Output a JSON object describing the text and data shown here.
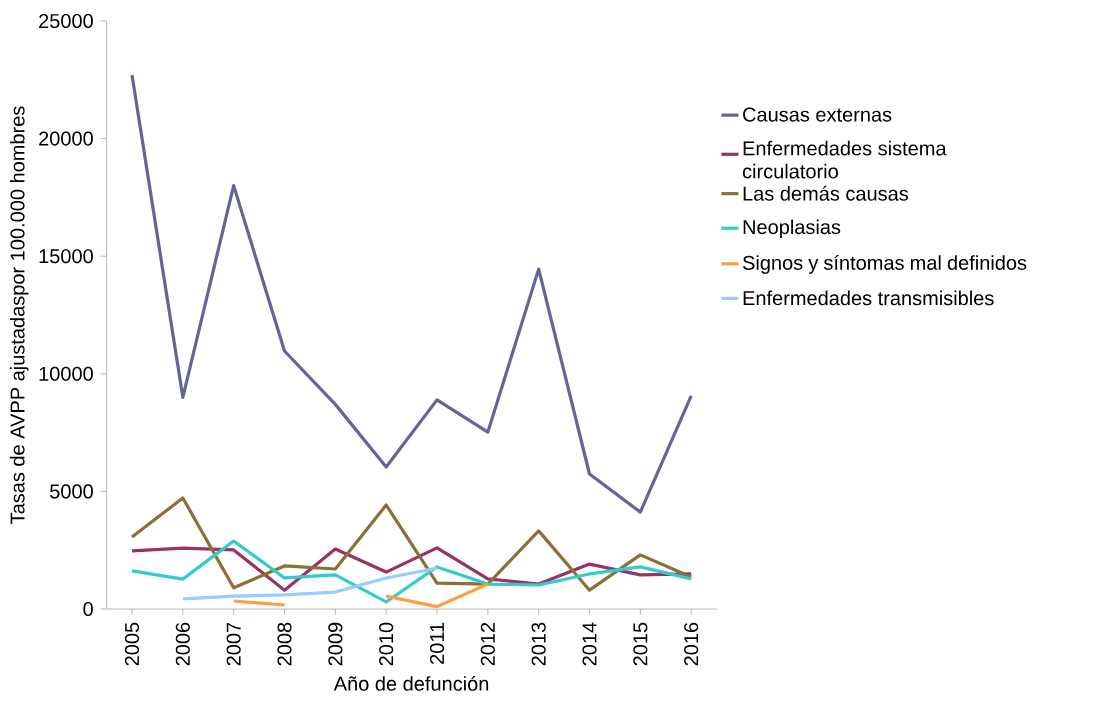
{
  "chart_data": {
    "type": "line",
    "xlabel": "Año de defunción",
    "ylabel": "Tasas de AVPP ajustadaspor 100.000 hombres",
    "categories": [
      "2005",
      "2006",
      "2007",
      "2008",
      "2009",
      "2010",
      "2011",
      "2012",
      "2013",
      "2014",
      "2015",
      "2016"
    ],
    "series": [
      {
        "name": "Causas externas",
        "color": "#646496",
        "values": [
          22700,
          9000,
          18000,
          10970,
          8700,
          6040,
          8890,
          7520,
          14450,
          5740,
          4120,
          9060
        ]
      },
      {
        "name": "Enfermedades sistema circulatorio",
        "color": "#993366",
        "values": [
          2470,
          2590,
          2510,
          800,
          2550,
          1570,
          2600,
          1280,
          1060,
          1910,
          1450,
          1490
        ]
      },
      {
        "name": "Las demás causas",
        "color": "#8c6e37",
        "values": [
          3060,
          4720,
          900,
          1830,
          1700,
          4420,
          1100,
          1060,
          3320,
          800,
          2300,
          1360
        ]
      },
      {
        "name": "Neoplasias",
        "color": "#33cccc",
        "values": [
          1620,
          1270,
          2890,
          1320,
          1450,
          300,
          1790,
          1060,
          1020,
          1490,
          1790,
          1280
        ]
      },
      {
        "name": "Signos y síntomas mal definidos",
        "color": "#ffa040",
        "values": [
          null,
          null,
          340,
          170,
          null,
          550,
          100,
          1060,
          null,
          null,
          null,
          null
        ]
      },
      {
        "name": "Enfermedades transmisibles",
        "color": "#99ccff",
        "values": [
          null,
          430,
          550,
          600,
          720,
          1320,
          1740,
          null,
          null,
          null,
          null,
          null
        ]
      }
    ],
    "ylim": [
      0,
      25000
    ],
    "yticks": [
      0,
      5000,
      10000,
      15000,
      20000,
      25000
    ],
    "grid": false,
    "legend": "right",
    "marker": "none",
    "line_style": "solid"
  }
}
